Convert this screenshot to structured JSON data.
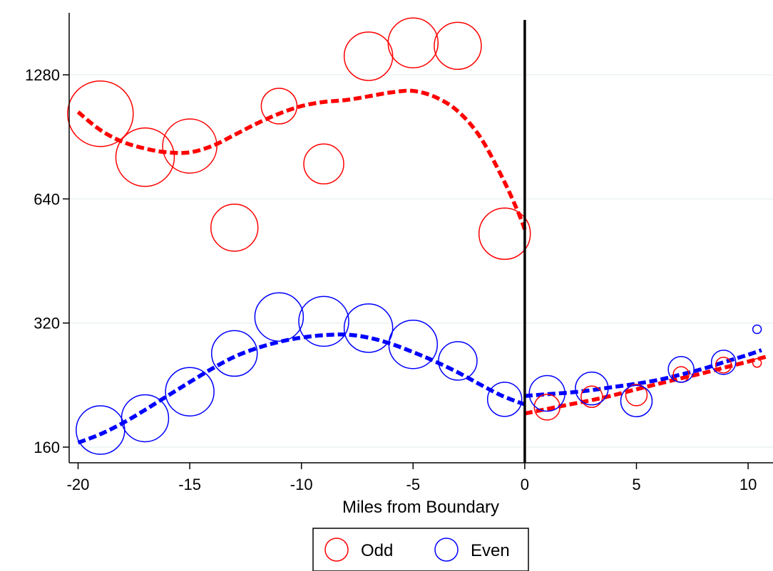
{
  "chart_data": {
    "type": "scatter",
    "title": "",
    "xlabel": "Miles from Boundary",
    "ylabel": "",
    "xlim": [
      -20.3,
      10.9
    ],
    "ylim": [
      150,
      1600
    ],
    "yscale": "log2",
    "xticks": [
      -20,
      -15,
      -10,
      -5,
      0,
      5,
      10
    ],
    "xtick_labels": [
      "-20",
      "-15",
      "-10",
      "-5",
      "0",
      "5",
      "10"
    ],
    "yticks": [
      160,
      320,
      640,
      1280
    ],
    "ytick_labels": [
      "160",
      "320",
      "640",
      "1280"
    ],
    "grid": "horizontal",
    "vertical_line_x": 0,
    "legend": {
      "placement": "bottom",
      "entries": [
        "Odd",
        "Even"
      ]
    },
    "series": [
      {
        "name": "Odd",
        "color": "#ff0000",
        "points": [
          {
            "x": -19,
            "y": 1030,
            "r": 46
          },
          {
            "x": -17,
            "y": 808,
            "r": 41
          },
          {
            "x": -15,
            "y": 860,
            "r": 38
          },
          {
            "x": -13,
            "y": 545,
            "r": 33
          },
          {
            "x": -11,
            "y": 1075,
            "r": 25
          },
          {
            "x": -9,
            "y": 778,
            "r": 28
          },
          {
            "x": -7,
            "y": 1420,
            "r": 34
          },
          {
            "x": -5,
            "y": 1530,
            "r": 35
          },
          {
            "x": -3,
            "y": 1505,
            "r": 33
          },
          {
            "x": -0.9,
            "y": 527,
            "r": 36
          },
          {
            "x": 1,
            "y": 200,
            "r": 18
          },
          {
            "x": 3,
            "y": 212,
            "r": 15
          },
          {
            "x": 5,
            "y": 214,
            "r": 15
          },
          {
            "x": 7,
            "y": 240,
            "r": 11
          },
          {
            "x": 8.9,
            "y": 253,
            "r": 11
          },
          {
            "x": 10.4,
            "y": 256,
            "r": 6
          }
        ],
        "fit": [
          {
            "x": -20,
            "y": 1040
          },
          {
            "x": -19,
            "y": 940
          },
          {
            "x": -18,
            "y": 880
          },
          {
            "x": -17,
            "y": 848
          },
          {
            "x": -16,
            "y": 830
          },
          {
            "x": -15,
            "y": 830
          },
          {
            "x": -14,
            "y": 860
          },
          {
            "x": -13,
            "y": 915
          },
          {
            "x": -12,
            "y": 975
          },
          {
            "x": -11,
            "y": 1030
          },
          {
            "x": -10,
            "y": 1075
          },
          {
            "x": -9,
            "y": 1100
          },
          {
            "x": -8,
            "y": 1112
          },
          {
            "x": -7,
            "y": 1135
          },
          {
            "x": -6,
            "y": 1160
          },
          {
            "x": -5,
            "y": 1170
          },
          {
            "x": -4,
            "y": 1130
          },
          {
            "x": -3,
            "y": 1045
          },
          {
            "x": -2,
            "y": 905
          },
          {
            "x": -1,
            "y": 720
          },
          {
            "x": -0.3,
            "y": 595
          },
          {
            "x": 0,
            "y": 540
          }
        ],
        "fit_right": [
          {
            "x": 0,
            "y": 193
          },
          {
            "x": 1,
            "y": 198
          },
          {
            "x": 2,
            "y": 203
          },
          {
            "x": 3,
            "y": 208
          },
          {
            "x": 4,
            "y": 214
          },
          {
            "x": 5,
            "y": 221
          },
          {
            "x": 6,
            "y": 228
          },
          {
            "x": 7,
            "y": 235
          },
          {
            "x": 8,
            "y": 242
          },
          {
            "x": 9,
            "y": 250
          },
          {
            "x": 10,
            "y": 258
          },
          {
            "x": 10.8,
            "y": 265
          }
        ]
      },
      {
        "name": "Even",
        "color": "#0000ff",
        "points": [
          {
            "x": -19,
            "y": 176,
            "r": 34
          },
          {
            "x": -17,
            "y": 188,
            "r": 33
          },
          {
            "x": -15,
            "y": 218,
            "r": 34
          },
          {
            "x": -13,
            "y": 270,
            "r": 32
          },
          {
            "x": -11,
            "y": 331,
            "r": 34
          },
          {
            "x": -9,
            "y": 323,
            "r": 35
          },
          {
            "x": -7,
            "y": 311,
            "r": 34
          },
          {
            "x": -5,
            "y": 284,
            "r": 34
          },
          {
            "x": -3,
            "y": 259,
            "r": 27
          },
          {
            "x": -0.9,
            "y": 209,
            "r": 24
          },
          {
            "x": 1,
            "y": 216,
            "r": 25
          },
          {
            "x": 3,
            "y": 222,
            "r": 23
          },
          {
            "x": 5,
            "y": 207,
            "r": 22
          },
          {
            "x": 7,
            "y": 247,
            "r": 18
          },
          {
            "x": 8.9,
            "y": 257,
            "r": 17
          },
          {
            "x": 10.4,
            "y": 309,
            "r": 6
          }
        ],
        "fit": [
          {
            "x": -20,
            "y": 164
          },
          {
            "x": -19,
            "y": 172
          },
          {
            "x": -18,
            "y": 183
          },
          {
            "x": -17,
            "y": 197
          },
          {
            "x": -16,
            "y": 213
          },
          {
            "x": -15,
            "y": 230
          },
          {
            "x": -14,
            "y": 248
          },
          {
            "x": -13,
            "y": 265
          },
          {
            "x": -12,
            "y": 278
          },
          {
            "x": -11,
            "y": 288
          },
          {
            "x": -10,
            "y": 295
          },
          {
            "x": -9,
            "y": 299
          },
          {
            "x": -8,
            "y": 300
          },
          {
            "x": -7,
            "y": 295
          },
          {
            "x": -6,
            "y": 285
          },
          {
            "x": -5,
            "y": 272
          },
          {
            "x": -4,
            "y": 258
          },
          {
            "x": -3,
            "y": 243
          },
          {
            "x": -2,
            "y": 227
          },
          {
            "x": -1,
            "y": 213
          },
          {
            "x": 0,
            "y": 203
          }
        ],
        "fit_right": [
          {
            "x": 0,
            "y": 213
          },
          {
            "x": 1,
            "y": 215
          },
          {
            "x": 2,
            "y": 217
          },
          {
            "x": 3,
            "y": 220
          },
          {
            "x": 4,
            "y": 224
          },
          {
            "x": 5,
            "y": 228
          },
          {
            "x": 6,
            "y": 233
          },
          {
            "x": 7,
            "y": 240
          },
          {
            "x": 8,
            "y": 248
          },
          {
            "x": 9,
            "y": 258
          },
          {
            "x": 10,
            "y": 268
          },
          {
            "x": 10.6,
            "y": 275
          }
        ]
      }
    ]
  }
}
